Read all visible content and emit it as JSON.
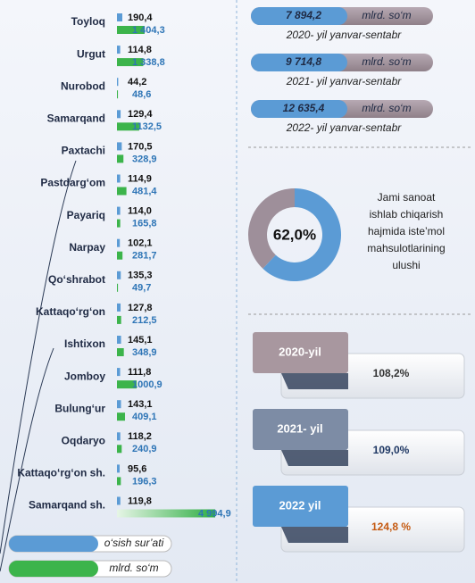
{
  "chart_data": [
    {
      "type": "bar",
      "categories": [
        "Toyloq",
        "Urgut",
        "Nurobod",
        "Samarqand",
        "Paxtachi",
        "Pastdarg‘om",
        "Payariq",
        "Narpay",
        "Qo‘shrabot",
        "Kattaqo‘rg‘on",
        "Ishtixon",
        "Jomboy",
        "Bulung‘ur",
        "Oqdaryo",
        "Kattaqo‘rg‘on sh.",
        "Samarqand  sh."
      ],
      "series": [
        {
          "name": "o‘sish sur’ati",
          "color": "#5b9bd5",
          "values": [
            190.4,
            114.8,
            44.2,
            129.4,
            170.5,
            114.9,
            114.0,
            102.1,
            135.3,
            127.8,
            145.1,
            111.8,
            143.1,
            118.2,
            95.6,
            119.8
          ],
          "value_labels": [
            "190,4",
            "114,8",
            "44,2",
            "129,4",
            "170,5",
            "114,9",
            "114,0",
            "102,1",
            "135,3",
            "127,8",
            "145,1",
            "111,8",
            "143,1",
            "118,2",
            "95,6",
            "119,8"
          ]
        },
        {
          "name": "mlrd. so‘m",
          "color": "#3cb44b",
          "values": [
            1404.3,
            1338.8,
            48.6,
            1132.5,
            328.9,
            481.4,
            165.8,
            281.7,
            49.7,
            212.5,
            348.9,
            1000.9,
            409.1,
            240.9,
            196.3,
            4994.9
          ],
          "value_labels": [
            "1 404,3",
            "1 338,8",
            "48,6",
            "1132,5",
            "328,9",
            "481,4",
            "165,8",
            "281,7",
            "49,7",
            "212,5",
            "348,9",
            "1000,9",
            "409,1",
            "240,9",
            "196,3",
            "4 994,9"
          ]
        }
      ]
    },
    {
      "type": "pie",
      "donut": true,
      "categories": [
        null,
        null
      ],
      "values": [
        62.0,
        38.0
      ],
      "value_labels": [
        "62,0%",
        null
      ],
      "colors": [
        "#5b9bd5",
        "#9e8f9a"
      ],
      "annotation": [
        "Jami sanoat",
        "ishlab chiqarish",
        "hajmida iste’mol",
        "mahsulotlarining",
        "ulushi"
      ]
    }
  ],
  "totals": [
    {
      "value": "7 894,2",
      "unit": "mlrd. so‘m",
      "caption": "2020- yil yanvar-sentabr"
    },
    {
      "value": "9 714,8",
      "unit": "mlrd. so‘m",
      "caption": "2021- yil yanvar-sentabr"
    },
    {
      "value": "12 635,4",
      "unit": "mlrd. so‘m",
      "caption": "2022- yil yanvar-sentabr"
    }
  ],
  "growth": [
    {
      "year": "2020-yil",
      "value": "108,2%"
    },
    {
      "year": "2021- yil",
      "value": "109,0%"
    },
    {
      "year": "2022 yil",
      "value": "124,8 %"
    }
  ]
}
